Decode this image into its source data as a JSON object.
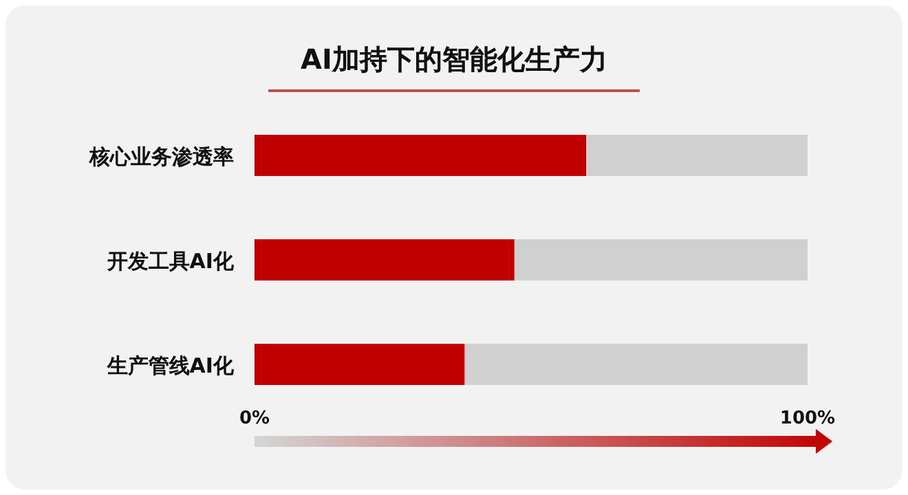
{
  "chart_data": {
    "type": "bar",
    "orientation": "horizontal",
    "stacked": true,
    "title": "AI加持下的智能化生产力",
    "categories": [
      "核心业务渗透率",
      "开发工具AI化",
      "生产管线AI化"
    ],
    "series": [
      {
        "color": "#c00000",
        "values": [
          60,
          47,
          38
        ]
      },
      {
        "color": "#d0d0d0",
        "values": [
          40,
          53,
          62
        ]
      }
    ],
    "xlim": [
      0,
      100
    ],
    "xticks": [
      {
        "value": 0,
        "label": "0%"
      },
      {
        "value": 100,
        "label": "100%"
      }
    ]
  }
}
